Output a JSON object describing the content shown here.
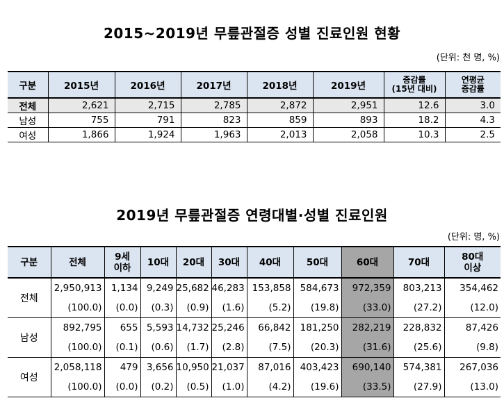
{
  "table1": {
    "title": "2015~2019년 무릎관절증 성별 진료인원 현황",
    "unit": "(단위: 천 명, %)",
    "headers": [
      "구분",
      "2015년",
      "2016년",
      "2017년",
      "2018년",
      "2019년",
      "증감률\n(15년 대비)",
      "연평균\n증감률"
    ],
    "rows": [
      {
        "label": "전체",
        "values": [
          "2,621",
          "2,715",
          "2,785",
          "2,872",
          "2,951",
          "12.6",
          "3.0"
        ]
      },
      {
        "label": "남성",
        "values": [
          "755",
          "791",
          "823",
          "859",
          "893",
          "18.2",
          "4.3"
        ]
      },
      {
        "label": "여성",
        "values": [
          "1,866",
          "1,924",
          "1,963",
          "2,013",
          "2,058",
          "10.3",
          "2.5"
        ]
      }
    ]
  },
  "table2": {
    "title": "2019년 무릎관절증 연령대별·성별 진료인원",
    "unit": "(단위: 명, %)",
    "headers": [
      "구분",
      "전체",
      "9세\n이하",
      "10대",
      "20대",
      "30대",
      "40대",
      "50대",
      "60대",
      "70대",
      "80대\n이상"
    ],
    "highlight_color": "#a6a6a6",
    "rows": [
      {
        "label": "전체",
        "counts": [
          "2,950,913",
          "1,134",
          "9,249",
          "25,682",
          "46,283",
          "153,858",
          "584,673",
          "972,359",
          "803,213",
          "354,462"
        ],
        "shares": [
          "(100.0)",
          "(0.0)",
          "(0.3)",
          "(0.9)",
          "(1.6)",
          "(5.2)",
          "(19.8)",
          "(33.0)",
          "(27.2)",
          "(12.0)"
        ]
      },
      {
        "label": "남성",
        "counts": [
          "892,795",
          "655",
          "5,593",
          "14,732",
          "25,246",
          "66,842",
          "181,250",
          "282,219",
          "228,832",
          "87,426"
        ],
        "shares": [
          "(100.0)",
          "(0.1)",
          "(0.6)",
          "(1.7)",
          "(2.8)",
          "(7.5)",
          "(20.3)",
          "(31.6)",
          "(25.6)",
          "(9.8)"
        ]
      },
      {
        "label": "여성",
        "counts": [
          "2,058,118",
          "479",
          "3,656",
          "10,950",
          "21,037",
          "87,016",
          "403,423",
          "690,140",
          "574,381",
          "267,036"
        ],
        "shares": [
          "(100.0)",
          "(0.0)",
          "(0.2)",
          "(0.5)",
          "(1.0)",
          "(4.2)",
          "(19.6)",
          "(33.5)",
          "(27.9)",
          "(13.0)"
        ]
      }
    ]
  }
}
